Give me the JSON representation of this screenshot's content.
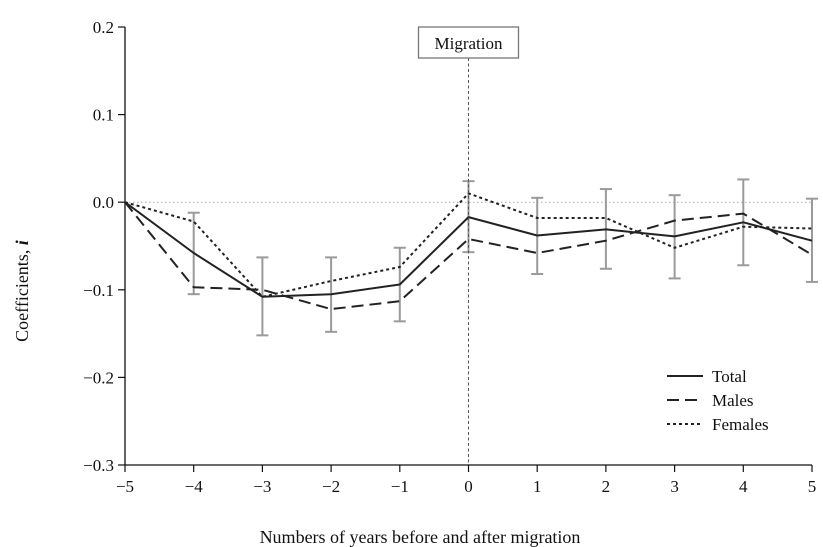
{
  "chart_data": {
    "type": "line",
    "title": "",
    "xlabel": "Numbers of years before and after migration",
    "ylabel": "Coefficients, ",
    "ylabel_symbol": "i",
    "x": [
      -5,
      -4,
      -3,
      -2,
      -1,
      0,
      1,
      2,
      3,
      4,
      5
    ],
    "x_tick_labels": [
      "−5",
      "−4",
      "−3",
      "−2",
      "−1",
      "0",
      "1",
      "2",
      "3",
      "4",
      "5"
    ],
    "y_ticks": [
      0.2,
      0.1,
      0.0,
      -0.1,
      -0.2,
      -0.3
    ],
    "y_tick_labels": [
      "0.2",
      "0.1",
      "0.0",
      "−0.1",
      "−0.2",
      "−0.3"
    ],
    "xlim": [
      -5,
      5
    ],
    "ylim": [
      -0.3,
      0.2
    ],
    "grid": false,
    "reference_line_y": 0,
    "series": [
      {
        "name": "Total",
        "style": "solid",
        "color": "#222222",
        "values": [
          0.0,
          -0.058,
          -0.108,
          -0.105,
          -0.094,
          -0.017,
          -0.038,
          -0.031,
          -0.039,
          -0.023,
          -0.044
        ],
        "error_low": [
          null,
          -0.105,
          -0.152,
          -0.148,
          -0.136,
          -0.057,
          -0.082,
          -0.076,
          -0.087,
          -0.072,
          -0.091
        ],
        "error_high": [
          null,
          -0.012,
          -0.063,
          -0.063,
          -0.052,
          0.024,
          0.005,
          0.015,
          0.008,
          0.026,
          0.004
        ]
      },
      {
        "name": "Males",
        "style": "dashed",
        "color": "#222222",
        "values": [
          0.0,
          -0.097,
          -0.1,
          -0.122,
          -0.113,
          -0.042,
          -0.058,
          -0.044,
          -0.021,
          -0.013,
          -0.06
        ]
      },
      {
        "name": "Females",
        "style": "dotted",
        "color": "#222222",
        "values": [
          0.0,
          -0.022,
          -0.108,
          -0.09,
          -0.074,
          0.01,
          -0.018,
          -0.018,
          -0.052,
          -0.028,
          -0.03
        ]
      }
    ],
    "annotation": {
      "label": "Migration",
      "x": 0
    },
    "legend_position": "bottom-right",
    "error_bar_color": "#9a9a9a"
  }
}
